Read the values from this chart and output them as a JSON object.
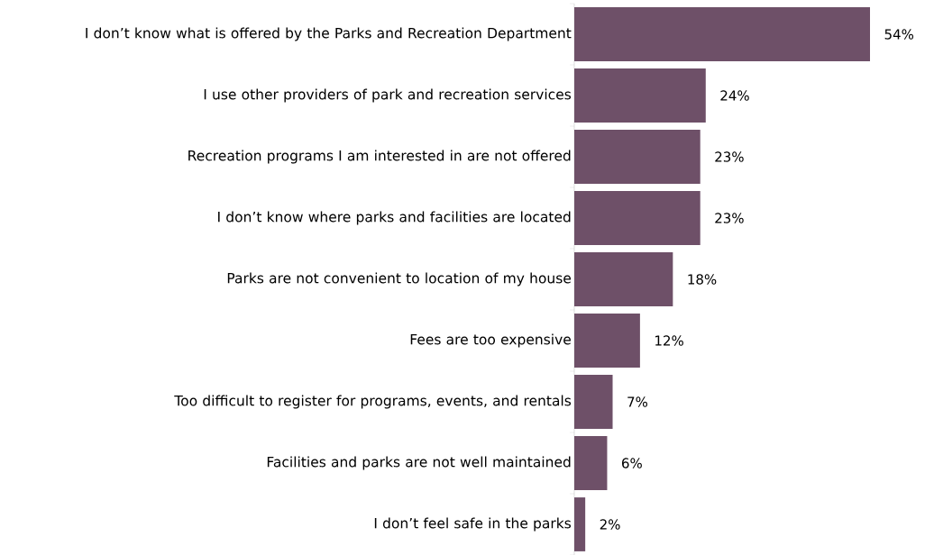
{
  "chart_data": {
    "type": "bar",
    "orientation": "horizontal",
    "color": "#6e5068",
    "categories": [
      "I don’t know what is offered by the Parks and Recreation Department",
      "I use other providers of park and recreation services",
      "Recreation programs I am interested in are not offered",
      "I don’t know where parks and facilities are located",
      "Parks are not convenient to location of my house",
      "Fees are too expensive",
      "Too difficult to register for programs, events, and rentals",
      "Facilities and parks are not well maintained",
      "I don’t feel safe in the parks"
    ],
    "values": [
      54,
      24,
      23,
      23,
      18,
      12,
      7,
      6,
      2
    ],
    "value_labels": [
      "54%",
      "24%",
      "23%",
      "23%",
      "18%",
      "12%",
      "7%",
      "6%",
      "2%"
    ]
  }
}
